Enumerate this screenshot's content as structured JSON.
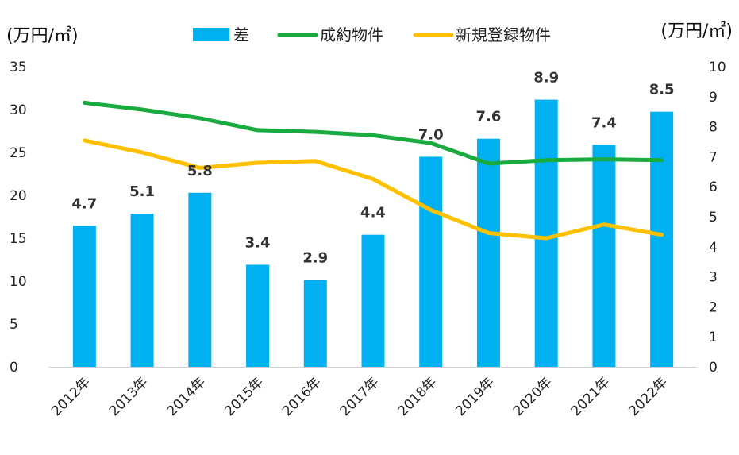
{
  "chart_data": {
    "type": "bar+line",
    "left_axis_unit": "(万円/㎡)",
    "right_axis_unit": "(万円/㎡)",
    "categories": [
      "2012年",
      "2013年",
      "2014年",
      "2015年",
      "2016年",
      "2017年",
      "2018年",
      "2019年",
      "2020年",
      "2021年",
      "2022年"
    ],
    "left_ylim": [
      0,
      35
    ],
    "left_ticks": [
      "0",
      "5",
      "10",
      "15",
      "20",
      "25",
      "30",
      "35"
    ],
    "right_ylim": [
      0,
      10
    ],
    "right_ticks": [
      "0",
      "1",
      "2",
      "3",
      "4",
      "5",
      "6",
      "7",
      "8",
      "9",
      "10"
    ],
    "legend_position": "top",
    "series": [
      {
        "name": "差",
        "kind": "bar",
        "axis": "right",
        "color": "#00b0f0",
        "values": [
          4.7,
          5.1,
          5.8,
          3.4,
          2.9,
          4.4,
          7.0,
          7.6,
          8.9,
          7.4,
          8.5
        ],
        "data_labels": [
          "4.7",
          "5.1",
          "5.8",
          "3.4",
          "2.9",
          "4.4",
          "7.0",
          "7.6",
          "8.9",
          "7.4",
          "8.5"
        ]
      },
      {
        "name": "成約物件",
        "kind": "line",
        "axis": "left",
        "color": "#1aab40",
        "values": [
          30.8,
          30.0,
          29.0,
          27.6,
          27.4,
          27.0,
          26.1,
          23.7,
          24.1,
          24.2,
          24.1
        ]
      },
      {
        "name": "新規登録物件",
        "kind": "line",
        "axis": "left",
        "color": "#ffc000",
        "values": [
          26.4,
          25.0,
          23.2,
          23.8,
          24.0,
          21.9,
          18.3,
          15.6,
          15.0,
          16.6,
          15.4
        ]
      }
    ]
  }
}
